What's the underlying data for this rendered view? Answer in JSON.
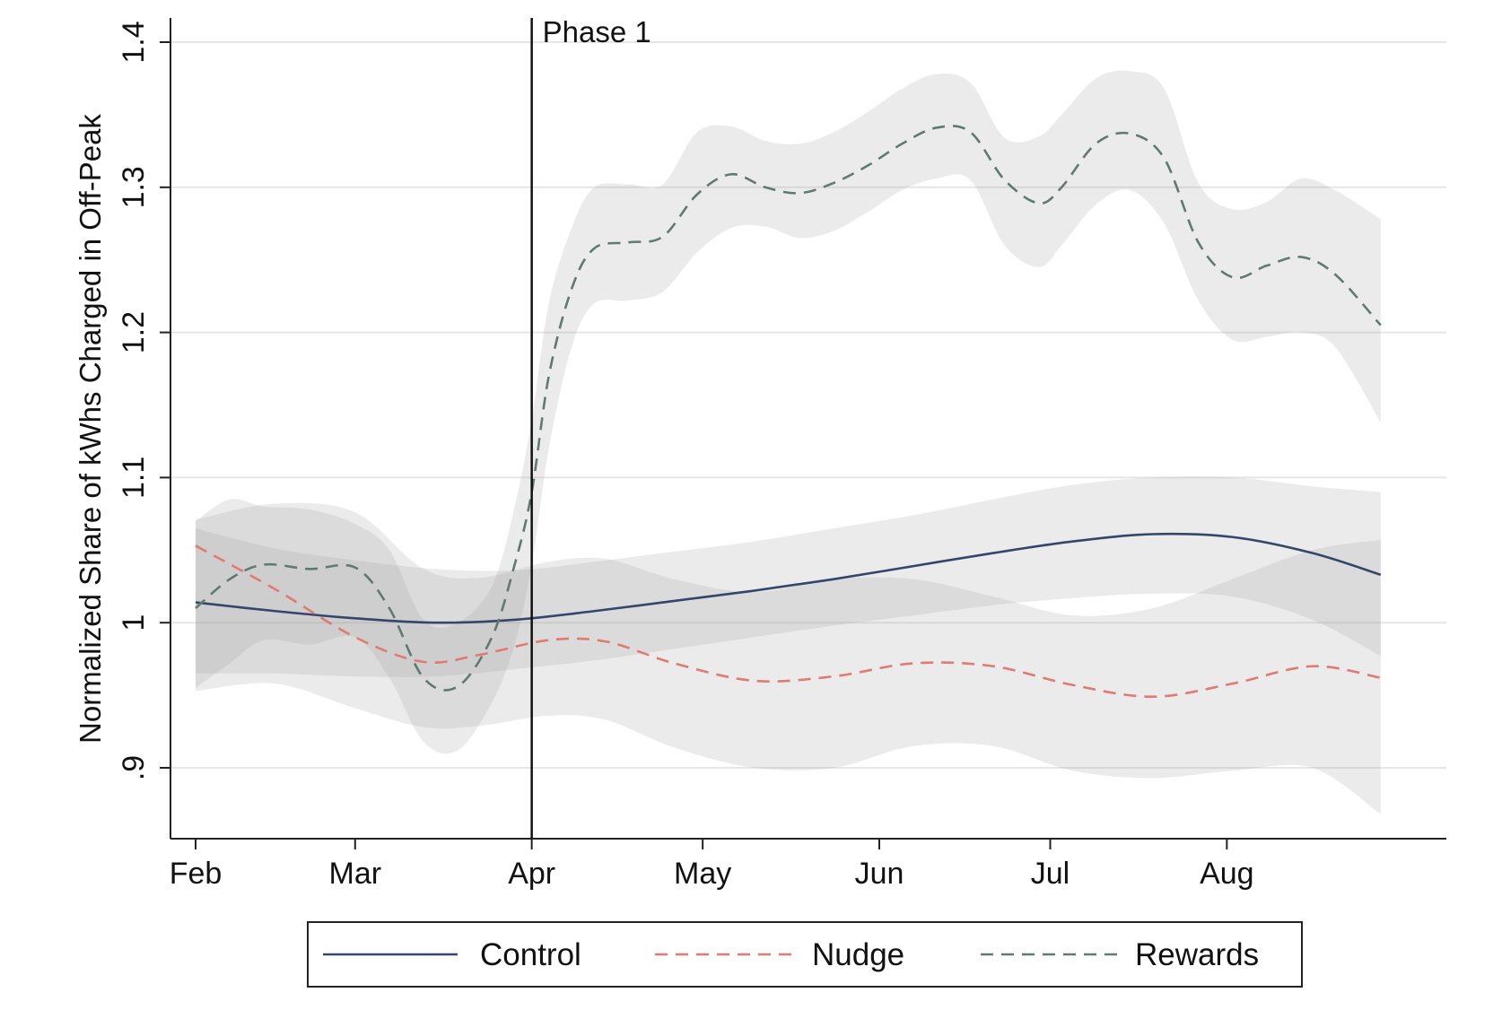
{
  "chart_data": {
    "type": "line",
    "title": "",
    "xlabel": "",
    "ylabel": "Normalized Share of kWhs Charged in Off-Peak",
    "x_tick_labels": [
      "Feb",
      "Mar",
      "Apr",
      "May",
      "Jun",
      "Jul",
      "Aug"
    ],
    "x_tick_days": [
      0,
      28,
      59,
      89,
      120,
      150,
      181
    ],
    "x_domain_days": [
      -4,
      213
    ],
    "y_tick_labels": [
      ".9",
      "1",
      "1.1",
      "1.2",
      "1.3",
      "1.4"
    ],
    "y_ticks": [
      0.9,
      1.0,
      1.1,
      1.2,
      1.3,
      1.4
    ],
    "ylim": [
      0.85,
      1.42
    ],
    "grid": true,
    "annotation": {
      "text": "Phase 1",
      "x_day": 59
    },
    "legend": {
      "position": "bottom",
      "entries": [
        "Control",
        "Nudge",
        "Rewards"
      ]
    },
    "series": [
      {
        "name": "Control",
        "color": "#34466b",
        "style": "solid",
        "x": [
          0,
          14,
          28,
          42,
          56,
          70,
          84,
          98,
          112,
          126,
          140,
          154,
          168,
          182,
          196,
          208
        ],
        "y": [
          1.014,
          1.008,
          1.003,
          1.0,
          1.002,
          1.008,
          1.015,
          1.022,
          1.03,
          1.039,
          1.048,
          1.056,
          1.061,
          1.059,
          1.048,
          1.033
        ],
        "ci_lower": [
          0.965,
          0.965,
          0.963,
          0.963,
          0.968,
          0.974,
          0.982,
          0.99,
          0.998,
          1.005,
          1.012,
          1.017,
          1.02,
          1.018,
          1.002,
          0.977
        ],
        "ci_upper": [
          1.065,
          1.051,
          1.043,
          1.037,
          1.036,
          1.042,
          1.049,
          1.056,
          1.065,
          1.074,
          1.085,
          1.095,
          1.1,
          1.1,
          1.094,
          1.09
        ]
      },
      {
        "name": "Nudge",
        "color": "#e07a72",
        "style": "dashed",
        "x": [
          0,
          14,
          28,
          40,
          50,
          62,
          72,
          84,
          98,
          112,
          126,
          140,
          154,
          168,
          182,
          196,
          208
        ],
        "y": [
          1.053,
          1.023,
          0.99,
          0.973,
          0.978,
          0.988,
          0.987,
          0.972,
          0.96,
          0.963,
          0.972,
          0.97,
          0.957,
          0.949,
          0.958,
          0.97,
          0.962
        ],
        "ci_lower": [
          0.953,
          0.958,
          0.941,
          0.928,
          0.929,
          0.936,
          0.933,
          0.914,
          0.9,
          0.9,
          0.915,
          0.915,
          0.898,
          0.893,
          0.898,
          0.9,
          0.868
        ],
        "ci_upper": [
          1.071,
          1.082,
          1.076,
          1.037,
          1.031,
          1.042,
          1.044,
          1.03,
          1.021,
          1.03,
          1.03,
          1.018,
          1.005,
          1.01,
          1.03,
          1.05,
          1.057
        ]
      },
      {
        "name": "Rewards",
        "color": "#5f7a6e",
        "style": "dashed",
        "x": [
          0,
          6,
          12,
          20,
          28,
          34,
          40,
          46,
          52,
          56,
          59,
          62,
          66,
          70,
          76,
          82,
          88,
          94,
          100,
          106,
          112,
          118,
          124,
          130,
          136,
          142,
          148,
          152,
          158,
          164,
          170,
          176,
          182,
          188,
          194,
          200,
          208
        ],
        "y": [
          1.01,
          1.03,
          1.04,
          1.037,
          1.038,
          1.01,
          0.962,
          0.956,
          0.99,
          1.04,
          1.09,
          1.17,
          1.23,
          1.258,
          1.262,
          1.266,
          1.295,
          1.309,
          1.3,
          1.296,
          1.303,
          1.315,
          1.33,
          1.341,
          1.338,
          1.305,
          1.289,
          1.3,
          1.33,
          1.337,
          1.32,
          1.262,
          1.238,
          1.246,
          1.252,
          1.24,
          1.205
        ],
        "ci_lower": [
          0.955,
          0.972,
          0.988,
          0.985,
          0.99,
          0.962,
          0.918,
          0.912,
          0.945,
          0.985,
          1.04,
          1.12,
          1.19,
          1.22,
          1.222,
          1.228,
          1.255,
          1.272,
          1.273,
          1.265,
          1.27,
          1.283,
          1.298,
          1.306,
          1.305,
          1.26,
          1.245,
          1.26,
          1.288,
          1.298,
          1.275,
          1.222,
          1.195,
          1.197,
          1.2,
          1.19,
          1.138
        ],
        "ci_upper": [
          1.07,
          1.085,
          1.08,
          1.078,
          1.068,
          1.05,
          1.002,
          1.0,
          1.025,
          1.08,
          1.14,
          1.22,
          1.272,
          1.3,
          1.302,
          1.302,
          1.338,
          1.342,
          1.332,
          1.33,
          1.338,
          1.352,
          1.368,
          1.378,
          1.372,
          1.334,
          1.335,
          1.35,
          1.375,
          1.38,
          1.368,
          1.303,
          1.285,
          1.29,
          1.306,
          1.298,
          1.278
        ]
      }
    ]
  }
}
